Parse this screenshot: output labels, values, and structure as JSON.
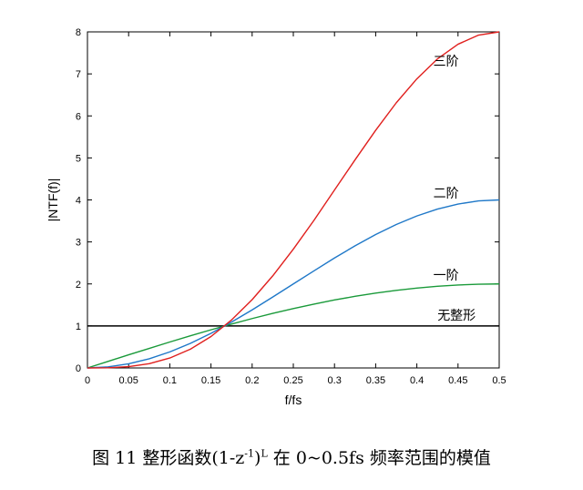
{
  "chart_data": {
    "type": "line",
    "title": "",
    "xlabel": "f/fs",
    "ylabel": "|NTF(f)|",
    "xlim": [
      0,
      0.5
    ],
    "ylim": [
      0,
      8
    ],
    "xticks": [
      0,
      0.05,
      0.1,
      0.15,
      0.2,
      0.25,
      0.3,
      0.35,
      0.4,
      0.45,
      0.5
    ],
    "yticks": [
      0,
      1,
      2,
      3,
      4,
      5,
      6,
      7,
      8
    ],
    "x_tick_labels": [
      "0",
      "0.05",
      "0.1",
      "0.15",
      "0.2",
      "0.25",
      "0.3",
      "0.35",
      "0.4",
      "0.45",
      "0.5"
    ],
    "y_tick_labels": [
      "0",
      "1",
      "2",
      "3",
      "4",
      "5",
      "6",
      "7",
      "8"
    ],
    "grid": false,
    "x": [
      0,
      0.025,
      0.05,
      0.075,
      0.1,
      0.125,
      0.15,
      0.175,
      0.2,
      0.225,
      0.25,
      0.275,
      0.3,
      0.325,
      0.35,
      0.375,
      0.4,
      0.425,
      0.45,
      0.475,
      0.5
    ],
    "series": [
      {
        "name": "无整形",
        "color": "#000000",
        "values": [
          1,
          1,
          1,
          1,
          1,
          1,
          1,
          1,
          1,
          1,
          1,
          1,
          1,
          1,
          1,
          1,
          1,
          1,
          1,
          1,
          1
        ]
      },
      {
        "name": "一阶",
        "color": "#1a9a3a",
        "values": [
          0,
          0.156,
          0.313,
          0.465,
          0.618,
          0.765,
          0.908,
          1.045,
          1.176,
          1.299,
          1.414,
          1.52,
          1.618,
          1.705,
          1.782,
          1.848,
          1.902,
          1.945,
          1.975,
          1.994,
          2.0
        ]
      },
      {
        "name": "二阶",
        "color": "#1f78c8",
        "values": [
          0,
          0.025,
          0.098,
          0.218,
          0.382,
          0.585,
          0.824,
          1.093,
          1.382,
          1.688,
          2.0,
          2.311,
          2.618,
          2.907,
          3.176,
          3.415,
          3.618,
          3.782,
          3.902,
          3.976,
          4.0
        ]
      },
      {
        "name": "三阶",
        "color": "#e0201e",
        "values": [
          0,
          0.004,
          0.031,
          0.101,
          0.236,
          0.447,
          0.748,
          1.143,
          1.626,
          2.192,
          2.828,
          3.512,
          4.236,
          4.955,
          5.657,
          6.312,
          6.882,
          7.356,
          7.706,
          7.924,
          8.0
        ]
      }
    ],
    "annotations": [
      "三阶",
      "二阶",
      "一阶",
      "无整形"
    ]
  },
  "caption": {
    "prefix": "图  11  整形函数(1-z",
    "sup1": "-1",
    "mid": ")",
    "sup2": "L",
    "suffix": " 在 0~0.5fs 频率范围的模值"
  }
}
